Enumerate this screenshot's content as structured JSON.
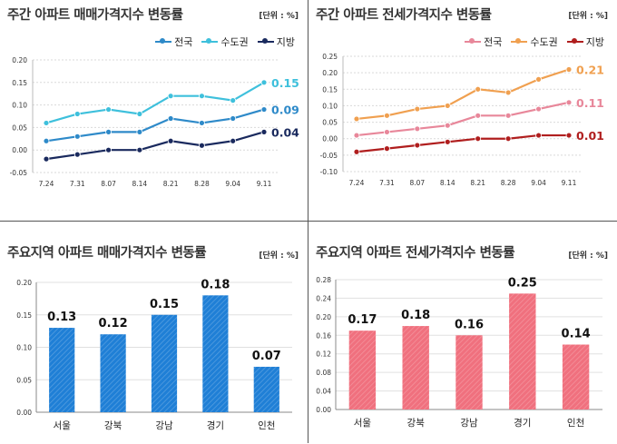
{
  "chart_data": [
    {
      "type": "line",
      "title": "주간 아파트 매매가격지수 변동률",
      "unit_label": "[단위 : %]",
      "categories": [
        "7.24",
        "7.31",
        "8.07",
        "8.14",
        "8.21",
        "8.28",
        "9.04",
        "9.11"
      ],
      "ylim": [
        -0.05,
        0.2
      ],
      "yticks": [
        "-0.05",
        "0.00",
        "0.05",
        "0.10",
        "0.15",
        "0.20"
      ],
      "series": [
        {
          "name": "전국",
          "color": "#2e8ac9",
          "values": [
            0.02,
            0.03,
            0.04,
            0.04,
            0.07,
            0.06,
            0.07,
            0.09
          ],
          "end_label": "0.09"
        },
        {
          "name": "수도권",
          "color": "#3ec0dc",
          "values": [
            0.06,
            0.08,
            0.09,
            0.08,
            0.12,
            0.12,
            0.11,
            0.15
          ],
          "end_label": "0.15"
        },
        {
          "name": "지방",
          "color": "#1a2a5e",
          "values": [
            -0.02,
            -0.01,
            0.0,
            0.0,
            0.02,
            0.01,
            0.02,
            0.04
          ],
          "end_label": "0.04"
        }
      ]
    },
    {
      "type": "line",
      "title": "주간 아파트 전세가격지수 변동률",
      "unit_label": "[단위 : %]",
      "categories": [
        "7.24",
        "7.31",
        "8.07",
        "8.14",
        "8.21",
        "8.28",
        "9.04",
        "9.11"
      ],
      "ylim": [
        -0.1,
        0.25
      ],
      "yticks": [
        "-0.10",
        "-0.05",
        "0.00",
        "0.05",
        "0.10",
        "0.15",
        "0.20",
        "0.25"
      ],
      "series": [
        {
          "name": "전국",
          "color": "#e8879a",
          "values": [
            0.01,
            0.02,
            0.03,
            0.04,
            0.07,
            0.07,
            0.09,
            0.11
          ],
          "end_label": "0.11"
        },
        {
          "name": "수도권",
          "color": "#f0a050",
          "values": [
            0.06,
            0.07,
            0.09,
            0.1,
            0.15,
            0.14,
            0.18,
            0.21
          ],
          "end_label": "0.21"
        },
        {
          "name": "지방",
          "color": "#b01e1e",
          "values": [
            -0.04,
            -0.03,
            -0.02,
            -0.01,
            0.0,
            0.0,
            0.01,
            0.01
          ],
          "end_label": "0.01"
        }
      ]
    },
    {
      "type": "bar",
      "title": "주요지역 아파트 매매가격지수 변동률",
      "unit_label": "[단위 : %]",
      "categories": [
        "서울",
        "강북",
        "강남",
        "경기",
        "인천"
      ],
      "values": [
        0.13,
        0.12,
        0.15,
        0.18,
        0.07
      ],
      "labels": [
        "0.13",
        "0.12",
        "0.15",
        "0.18",
        "0.07"
      ],
      "ylim": [
        0,
        0.2
      ],
      "yticks": [
        "0.00",
        "0.05",
        "0.10",
        "0.15",
        "0.20"
      ],
      "color": "#1f7fd6"
    },
    {
      "type": "bar",
      "title": "주요지역 아파트 전세가격지수 변동률",
      "unit_label": "[단위 : %]",
      "categories": [
        "서울",
        "강북",
        "강남",
        "경기",
        "인천"
      ],
      "values": [
        0.17,
        0.18,
        0.16,
        0.25,
        0.14
      ],
      "labels": [
        "0.17",
        "0.18",
        "0.16",
        "0.25",
        "0.14"
      ],
      "ylim": [
        0,
        0.28
      ],
      "yticks": [
        "0.00",
        "0.04",
        "0.08",
        "0.12",
        "0.16",
        "0.20",
        "0.24",
        "0.28"
      ],
      "color": "#f0707e"
    }
  ]
}
